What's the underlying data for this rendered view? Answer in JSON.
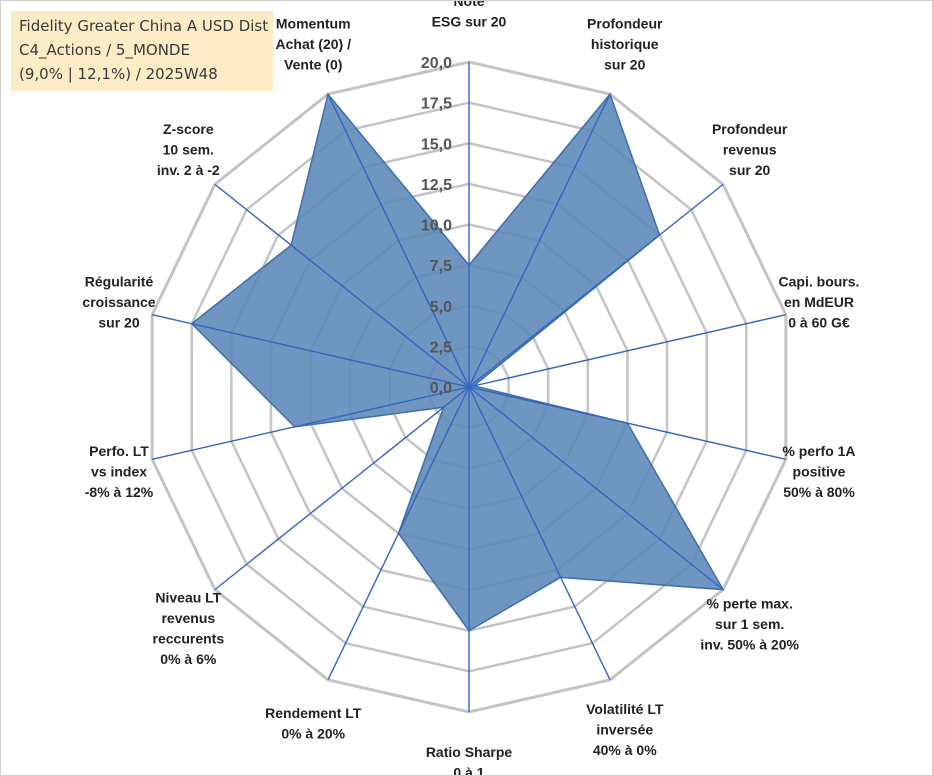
{
  "title_box": {
    "line1": "Fidelity Greater China A USD Dist",
    "line2": "C4_Actions / 5_MONDE",
    "line3": "(9,0% | 12,1%) / 2025W48"
  },
  "colors": {
    "fill": "#5b86b8",
    "stroke": "#3f6eaa",
    "grid": "#c4c4c4",
    "spoke": "#3565c0",
    "title_bg": "#fbecc6"
  },
  "chart_data": {
    "type": "radar",
    "r_min": 0,
    "r_max": 20,
    "r_step": 2.5,
    "tick_labels": [
      "0,0",
      "2,5",
      "5,0",
      "7,5",
      "10,0",
      "12,5",
      "15,0",
      "17,5",
      "20,0"
    ],
    "axes": [
      {
        "label": [
          "Note",
          "ESG sur 20"
        ],
        "value": 7.5
      },
      {
        "label": [
          "Profondeur",
          "historique",
          "sur 20"
        ],
        "value": 20
      },
      {
        "label": [
          "Profondeur",
          "revenus",
          "sur 20"
        ],
        "value": 15
      },
      {
        "label": [
          "Capi. bours.",
          "en MdEUR",
          "0 à 60 G€"
        ],
        "value": 0.3
      },
      {
        "label": [
          "% perfo 1A",
          "positive",
          "50% à 80%"
        ],
        "value": 10
      },
      {
        "label": [
          "% perte max.",
          "sur 1 sem.",
          "inv. 50% à 20%"
        ],
        "value": 20
      },
      {
        "label": [
          "Volatilité LT",
          "inversée",
          "40% à 0%"
        ],
        "value": 13
      },
      {
        "label": [
          "Ratio Sharpe",
          "0 à 1"
        ],
        "value": 15
      },
      {
        "label": [
          "Rendement LT",
          "0% à 20%"
        ],
        "value": 10
      },
      {
        "label": [
          "Niveau LT",
          "revenus",
          "reccurents",
          "0% à 6%"
        ],
        "value": 2
      },
      {
        "label": [
          "Perfo. LT",
          "vs index",
          "-8% à 12%"
        ],
        "value": 11
      },
      {
        "label": [
          "Régularité",
          "croissance",
          "sur 20"
        ],
        "value": 17.5
      },
      {
        "label": [
          "Z-score",
          "10 sem.",
          "inv. 2 à -2"
        ],
        "value": 14
      },
      {
        "label": [
          "Momentum",
          "Achat (20) /",
          "Vente (0)"
        ],
        "value": 20
      }
    ]
  }
}
